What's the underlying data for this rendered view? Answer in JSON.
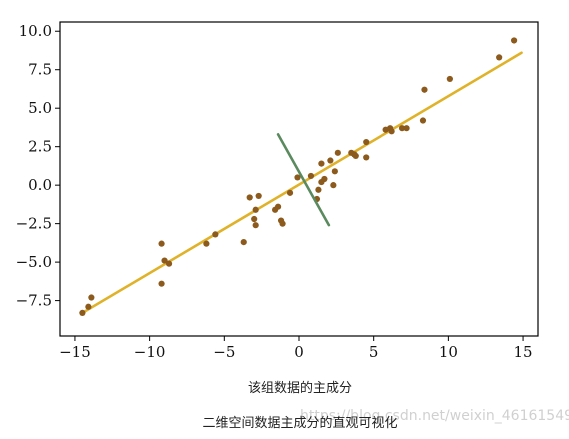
{
  "chart_data": {
    "type": "scatter",
    "xlabel": "该组数据的主成分",
    "ylabel": "",
    "xlim": [
      -16,
      16
    ],
    "ylim": [
      -9.8,
      10.6
    ],
    "xticks": [
      -15,
      -10,
      -5,
      0,
      5,
      10,
      15
    ],
    "xtick_labels": [
      "−15",
      "−10",
      "−5",
      "0",
      "5",
      "10",
      "15"
    ],
    "yticks": [
      -7.5,
      -5.0,
      -2.5,
      0.0,
      2.5,
      5.0,
      7.5,
      10.0
    ],
    "ytick_labels": [
      "−7.5",
      "−5.0",
      "−2.5",
      "0.0",
      "2.5",
      "5.0",
      "7.5",
      "10.0"
    ],
    "grid": false,
    "points_color": "#8b5a1c",
    "points": [
      [
        -14.5,
        -8.3
      ],
      [
        -13.9,
        -7.3
      ],
      [
        -14.1,
        -7.9
      ],
      [
        -9.2,
        -3.8
      ],
      [
        -9.0,
        -4.9
      ],
      [
        -8.7,
        -5.1
      ],
      [
        -9.2,
        -6.4
      ],
      [
        -6.2,
        -3.8
      ],
      [
        -5.6,
        -3.2
      ],
      [
        -3.7,
        -3.7
      ],
      [
        -3.3,
        -0.8
      ],
      [
        -3.0,
        -2.2
      ],
      [
        -2.9,
        -1.6
      ],
      [
        -2.9,
        -2.6
      ],
      [
        -2.7,
        -0.7
      ],
      [
        -1.6,
        -1.6
      ],
      [
        -1.4,
        -1.4
      ],
      [
        -1.2,
        -2.3
      ],
      [
        -1.1,
        -2.5
      ],
      [
        -0.6,
        -0.5
      ],
      [
        -0.1,
        0.5
      ],
      [
        0.8,
        0.6
      ],
      [
        1.3,
        -0.3
      ],
      [
        1.2,
        -0.9
      ],
      [
        1.5,
        0.2
      ],
      [
        1.5,
        1.4
      ],
      [
        1.7,
        0.4
      ],
      [
        2.1,
        1.6
      ],
      [
        2.4,
        0.9
      ],
      [
        2.3,
        0.0
      ],
      [
        2.6,
        2.1
      ],
      [
        3.5,
        2.1
      ],
      [
        3.7,
        2.0
      ],
      [
        3.8,
        1.9
      ],
      [
        4.5,
        1.8
      ],
      [
        4.5,
        2.8
      ],
      [
        5.8,
        3.6
      ],
      [
        6.1,
        3.7
      ],
      [
        6.2,
        3.5
      ],
      [
        6.9,
        3.7
      ],
      [
        7.2,
        3.7
      ],
      [
        8.3,
        4.2
      ],
      [
        8.4,
        6.2
      ],
      [
        10.1,
        6.9
      ],
      [
        13.4,
        8.3
      ],
      [
        14.4,
        9.4
      ]
    ],
    "principal_axis": {
      "color": "#e0b22a",
      "from": [
        -14.5,
        -8.3
      ],
      "to": [
        14.9,
        8.6
      ]
    },
    "secondary_axis": {
      "color": "#5a8a5e",
      "from": [
        -1.4,
        3.3
      ],
      "to": [
        2.0,
        -2.6
      ]
    }
  },
  "caption": "二维空间数据主成分的直观可视化",
  "watermark": "https://blog.csdn.net/weixin_46161549"
}
